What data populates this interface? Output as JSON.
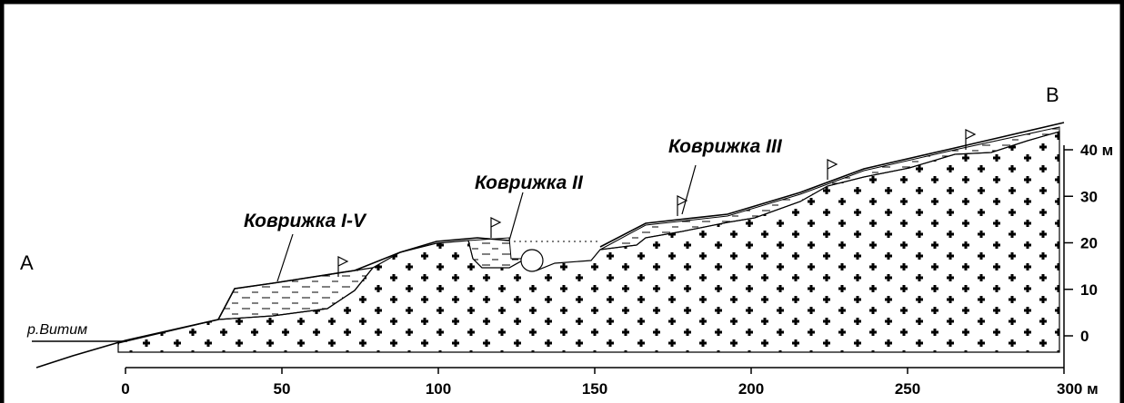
{
  "section": {
    "start_label": "A",
    "end_label": "B",
    "river_label": "р.Витим",
    "sites": [
      "Коврижка I-V",
      "Коврижка II",
      "Коврижка III"
    ],
    "x_axis": {
      "ticks": [
        "0",
        "50",
        "100",
        "150",
        "200",
        "250",
        "300 м"
      ]
    },
    "y_axis": {
      "ticks": [
        "0",
        "10",
        "20",
        "30",
        "40 м"
      ]
    }
  }
}
